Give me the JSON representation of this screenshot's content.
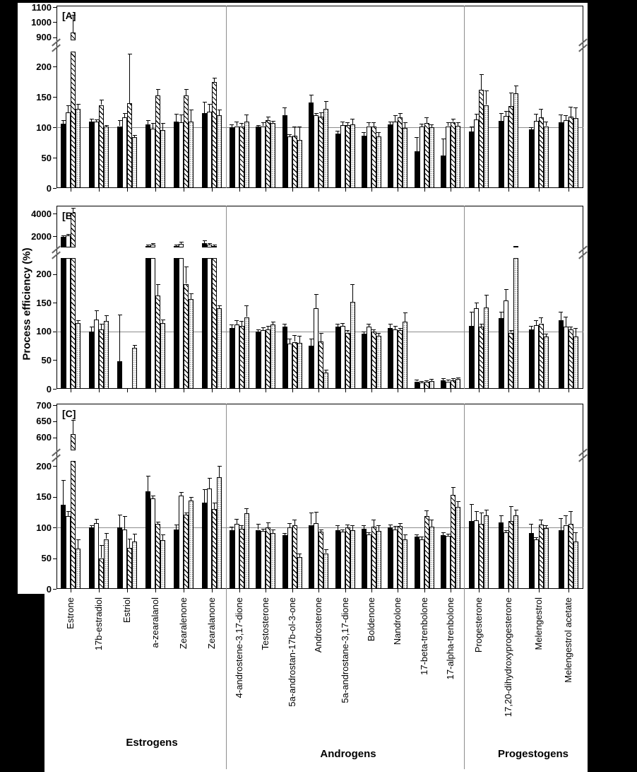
{
  "figure": {
    "y_axis_title": "Process efficiency (%)",
    "group_labels": [
      "Estrogens",
      "Androgens",
      "Progestogens"
    ],
    "reference_value": 100,
    "colors": {
      "foreground": "#000000",
      "background": "#ffffff",
      "divider": "#8c8c8c",
      "reference_line": "#8c8c8c"
    },
    "series_styles": [
      "solid-black",
      "open-white",
      "diagonal-hatched",
      "stippled-dots"
    ]
  },
  "chart_data": [
    {
      "type": "bar",
      "title": "[A]",
      "ylabel": "Process efficiency (%)",
      "axis_break": true,
      "upper_ticks": [
        900,
        1000,
        1100
      ],
      "lower_ticks": [
        0,
        50,
        100,
        150,
        200
      ],
      "upper_range": [
        880,
        1100
      ],
      "lower_range": [
        0,
        225
      ],
      "reference_line": 100,
      "legend": "none",
      "categories": [
        "Estrone",
        "17b-estradiol",
        "Estriol",
        "a-zearalanol",
        "Zearalenone",
        "Zearalanone",
        "4-androstene-3,17-dione",
        "Testosterone",
        "5a-androstan-17b-ol-3-one",
        "Androsterone",
        "5a-androstane-3,17-dione",
        "Boldenone",
        "Nandrolone",
        "17-beta-trenbolone",
        "17-alpha-trenbolone",
        "Progesterone",
        "17,20-dihydroxyprogesterone",
        "Melengestrol",
        "Melengestrol acetate"
      ],
      "series": [
        {
          "name": "solid-black",
          "values": [
            106,
            110,
            102,
            105,
            110,
            124,
            100,
            101,
            120,
            141,
            90,
            86,
            105,
            61,
            54,
            93,
            111,
            97,
            108
          ],
          "errors": [
            6,
            4,
            10,
            7,
            12,
            18,
            5,
            3,
            13,
            13,
            4,
            6,
            5,
            23,
            28,
            8,
            13,
            3,
            13
          ]
        },
        {
          "name": "open-white",
          "values": [
            125,
            110,
            117,
            98,
            108,
            126,
            102,
            102,
            85,
            120,
            104,
            102,
            110,
            101,
            102,
            113,
            119,
            111,
            112
          ],
          "errors": [
            12,
            3,
            7,
            9,
            13,
            13,
            8,
            6,
            4,
            4,
            6,
            6,
            10,
            5,
            6,
            10,
            8,
            12,
            8
          ]
        },
        {
          "name": "diagonal-hatched",
          "values": [
            930,
            137,
            140,
            153,
            153,
            175,
            102,
            112,
            86,
            118,
            104,
            101,
            117,
            107,
            109,
            162,
            135,
            117,
            118
          ],
          "errors": [
            120,
            9,
            82,
            10,
            10,
            7,
            5,
            6,
            16,
            7,
            5,
            8,
            7,
            10,
            5,
            26,
            23,
            14,
            16
          ]
        },
        {
          "name": "stippled-dots",
          "values": [
            131,
            101,
            84,
            96,
            110,
            120,
            110,
            107,
            79,
            131,
            105,
            85,
            99,
            100,
            103,
            137,
            156,
            102,
            115
          ],
          "errors": [
            8,
            3,
            3,
            11,
            20,
            10,
            11,
            4,
            23,
            12,
            9,
            7,
            9,
            5,
            5,
            24,
            13,
            8,
            18
          ]
        }
      ]
    },
    {
      "type": "bar",
      "title": "[B]",
      "ylabel": "Process efficiency (%)",
      "axis_break": true,
      "upper_ticks": [
        2000,
        4000
      ],
      "lower_ticks": [
        0,
        50,
        100,
        150,
        200
      ],
      "upper_range": [
        1000,
        4500
      ],
      "lower_range": [
        0,
        228
      ],
      "reference_line": 100,
      "legend": "none",
      "categories": [
        "Estrone",
        "17b-estradiol",
        "Estriol",
        "a-zearalanol",
        "Zearalenone",
        "Zearalanone",
        "4-androstene-3,17-dione",
        "Testosterone",
        "5a-androstan-17b-ol-3-one",
        "Androsterone",
        "5a-androstane-3,17-dione",
        "Boldenone",
        "Nandrolone",
        "17-beta-trenbolone",
        "17-alpha-trenbolone",
        "Progesterone",
        "17,20-dihydroxyprogesterone",
        "Melengestrol",
        "Melengestrol acetate"
      ],
      "series": [
        {
          "name": "solid-black",
          "values": [
            1950,
            100,
            48,
            1150,
            1150,
            1350,
            106,
            100,
            108,
            75,
            109,
            96,
            106,
            13,
            15,
            110,
            123,
            104,
            120
          ],
          "errors": [
            100,
            8,
            82,
            100,
            100,
            250,
            6,
            4,
            5,
            12,
            5,
            4,
            8,
            3,
            3,
            25,
            12,
            6,
            15
          ]
        },
        {
          "name": "open-white",
          "values": [
            2050,
            121,
            null,
            1250,
            1300,
            1250,
            112,
            102,
            79,
            140,
            110,
            108,
            104,
            11,
            13,
            140,
            154,
            111,
            108
          ],
          "errors": [
            150,
            16,
            null,
            150,
            200,
            100,
            8,
            5,
            8,
            25,
            5,
            5,
            6,
            3,
            3,
            10,
            20,
            8,
            18
          ]
        },
        {
          "name": "diagonal-hatched",
          "values": [
            4050,
            104,
            null,
            163,
            183,
            1150,
            110,
            104,
            82,
            83,
            98,
            100,
            102,
            12,
            15,
            108,
            98,
            114,
            103
          ],
          "errors": [
            450,
            10,
            null,
            20,
            30,
            100,
            8,
            6,
            12,
            15,
            4,
            4,
            4,
            3,
            3,
            5,
            4,
            10,
            5
          ]
        },
        {
          "name": "stippled-dots",
          "values": [
            115,
            118,
            71,
            115,
            156,
            140,
            125,
            112,
            80,
            28,
            152,
            93,
            117,
            14,
            17,
            142,
            1150,
            91,
            91
          ],
          "errors": [
            5,
            10,
            6,
            6,
            10,
            5,
            20,
            5,
            12,
            5,
            30,
            5,
            16,
            3,
            3,
            22,
            0,
            5,
            15
          ]
        }
      ]
    },
    {
      "type": "bar",
      "title": "[C]",
      "ylabel": "Process efficiency (%)",
      "axis_break": true,
      "upper_ticks": [
        600,
        650,
        700
      ],
      "lower_ticks": [
        0,
        50,
        100,
        150,
        200
      ],
      "upper_range": [
        560,
        700
      ],
      "lower_range": [
        0,
        208
      ],
      "reference_line": 100,
      "legend": "none",
      "categories": [
        "Estrone",
        "17b-estradiol",
        "Estriol",
        "a-zearalanol",
        "Zearalenone",
        "Zearalanone",
        "4-androstene-3,17-dione",
        "Testosterone",
        "5a-androstan-17b-ol-3-one",
        "Androsterone",
        "5a-androstane-3,17-dione",
        "Boldenone",
        "Nandrolone",
        "17-beta-trenbolone",
        "17-alpha-trenbolone",
        "Progesterone",
        "17,20-dihydroxyprogesterone",
        "Melengestrol",
        "Melengestrol acetate"
      ],
      "series": [
        {
          "name": "solid-black",
          "values": [
            137,
            100,
            100,
            159,
            97,
            140,
            95,
            96,
            87,
            104,
            95,
            98,
            100,
            85,
            87,
            110,
            108,
            91,
            95
          ],
          "errors": [
            40,
            4,
            21,
            25,
            8,
            22,
            6,
            10,
            4,
            20,
            8,
            6,
            5,
            4,
            5,
            28,
            12,
            15,
            20
          ]
        },
        {
          "name": "open-white",
          "values": [
            118,
            107,
            97,
            147,
            152,
            163,
            106,
            94,
            100,
            107,
            93,
            88,
            97,
            81,
            86,
            111,
            92,
            80,
            104
          ],
          "errors": [
            9,
            7,
            21,
            5,
            5,
            17,
            8,
            4,
            7,
            18,
            4,
            4,
            5,
            4,
            4,
            15,
            4,
            4,
            15
          ]
        },
        {
          "name": "diagonal-hatched",
          "values": [
            610,
            50,
            67,
            106,
            121,
            130,
            98,
            100,
            103,
            93,
            100,
            101,
            102,
            118,
            153,
            106,
            110,
            105,
            106
          ],
          "errors": [
            45,
            21,
            15,
            3,
            3,
            10,
            5,
            8,
            10,
            4,
            5,
            12,
            5,
            10,
            13,
            18,
            25,
            8,
            20
          ]
        },
        {
          "name": "stippled-dots",
          "values": [
            66,
            81,
            77,
            79,
            144,
            182,
            123,
            91,
            52,
            58,
            95,
            94,
            80,
            101,
            133,
            119,
            119,
            99,
            77
          ],
          "errors": [
            15,
            10,
            13,
            10,
            6,
            18,
            8,
            6,
            6,
            6,
            8,
            10,
            8,
            12,
            10,
            10,
            10,
            5,
            15
          ]
        }
      ]
    }
  ]
}
